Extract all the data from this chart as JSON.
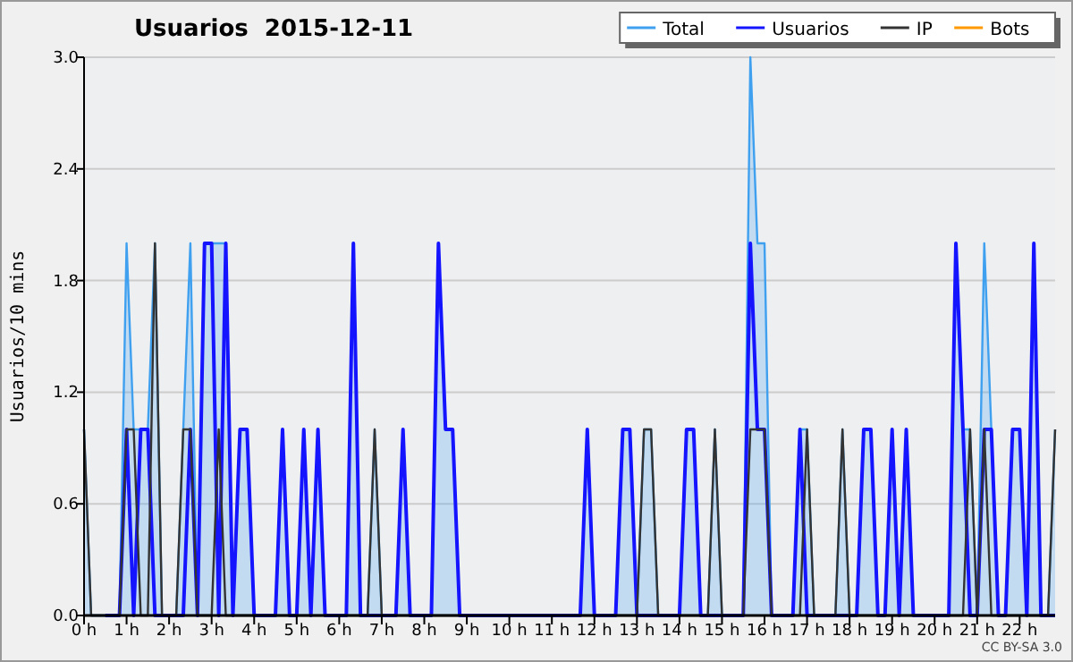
{
  "chart_data": {
    "type": "line",
    "title": "Usuarios  2015-12-11",
    "ylabel": "Usuarios/10 mins",
    "annotations": [
      "CC BY-SA 3.0"
    ],
    "x": [
      0,
      0.167,
      0.333,
      0.5,
      0.667,
      0.833,
      1,
      1.167,
      1.333,
      1.5,
      1.667,
      1.833,
      2,
      2.167,
      2.333,
      2.5,
      2.667,
      2.833,
      3,
      3.167,
      3.333,
      3.5,
      3.667,
      3.833,
      4,
      4.167,
      4.333,
      4.5,
      4.667,
      4.833,
      5,
      5.167,
      5.333,
      5.5,
      5.667,
      5.833,
      6,
      6.167,
      6.333,
      6.5,
      6.667,
      6.833,
      7,
      7.167,
      7.333,
      7.5,
      7.667,
      7.833,
      8,
      8.167,
      8.333,
      8.5,
      8.667,
      8.833,
      9,
      9.167,
      9.333,
      9.5,
      9.667,
      9.833,
      10,
      10.167,
      10.333,
      10.5,
      10.667,
      10.833,
      11,
      11.167,
      11.333,
      11.5,
      11.667,
      11.833,
      12,
      12.167,
      12.333,
      12.5,
      12.667,
      12.833,
      13,
      13.167,
      13.333,
      13.5,
      13.667,
      13.833,
      14,
      14.167,
      14.333,
      14.5,
      14.667,
      14.833,
      15,
      15.167,
      15.333,
      15.5,
      15.667,
      15.833,
      16,
      16.167,
      16.333,
      16.5,
      16.667,
      16.833,
      17,
      17.167,
      17.333,
      17.5,
      17.667,
      17.833,
      18,
      18.167,
      18.333,
      18.5,
      18.667,
      18.833,
      19,
      19.167,
      19.333,
      19.5,
      19.667,
      19.833,
      20,
      20.167,
      20.333,
      20.5,
      20.667,
      20.833,
      21,
      21.167,
      21.333,
      21.5,
      21.667,
      21.833,
      22,
      22.167,
      22.333,
      22.5,
      22.667,
      22.833
    ],
    "xlim": [
      0,
      22.833
    ],
    "xticks": [
      {
        "value": 0,
        "label": "0 h"
      },
      {
        "value": 1,
        "label": "1 h"
      },
      {
        "value": 2,
        "label": "2 h"
      },
      {
        "value": 3,
        "label": "3 h"
      },
      {
        "value": 4,
        "label": "4 h"
      },
      {
        "value": 5,
        "label": "5 h"
      },
      {
        "value": 6,
        "label": "6 h"
      },
      {
        "value": 7,
        "label": "7 h"
      },
      {
        "value": 8,
        "label": "8 h"
      },
      {
        "value": 9,
        "label": "9 h"
      },
      {
        "value": 10,
        "label": "10 h"
      },
      {
        "value": 11,
        "label": "11 h"
      },
      {
        "value": 12,
        "label": "12 h"
      },
      {
        "value": 13,
        "label": "13 h"
      },
      {
        "value": 14,
        "label": "14 h"
      },
      {
        "value": 15,
        "label": "15 h"
      },
      {
        "value": 16,
        "label": "16 h"
      },
      {
        "value": 17,
        "label": "17 h"
      },
      {
        "value": 18,
        "label": "18 h"
      },
      {
        "value": 19,
        "label": "19 h"
      },
      {
        "value": 20,
        "label": "20 h"
      },
      {
        "value": 21,
        "label": "21 h"
      },
      {
        "value": 22,
        "label": "22 h"
      }
    ],
    "ylim": [
      0,
      3
    ],
    "yticks": [
      {
        "value": 0,
        "label": "0.0"
      },
      {
        "value": 0.6,
        "label": "0.6"
      },
      {
        "value": 1.2,
        "label": "1.2"
      },
      {
        "value": 1.8,
        "label": "1.8"
      },
      {
        "value": 2.4,
        "label": "2.4"
      },
      {
        "value": 3,
        "label": "3.0"
      }
    ],
    "grid": "y",
    "legend": "top right",
    "marker": "none",
    "line_style": "solid",
    "series": [
      {
        "name": "Total",
        "type": "area",
        "color": "#3fa0f0",
        "values": [
          1,
          0,
          0,
          0,
          0,
          0,
          2,
          1,
          1,
          1,
          2,
          0,
          0,
          0,
          1,
          2,
          0,
          2,
          2,
          2,
          2,
          0,
          1,
          1,
          0,
          0,
          0,
          0,
          1,
          0,
          0,
          1,
          0,
          1,
          0,
          0,
          0,
          0,
          2,
          0,
          0,
          1,
          0,
          0,
          0,
          1,
          0,
          0,
          0,
          0,
          2,
          1,
          1,
          0,
          0,
          0,
          0,
          0,
          0,
          0,
          0,
          0,
          0,
          0,
          0,
          0,
          0,
          0,
          0,
          0,
          0,
          1,
          0,
          0,
          0,
          0,
          1,
          1,
          0,
          1,
          1,
          0,
          0,
          0,
          0,
          1,
          1,
          0,
          0,
          1,
          0,
          0,
          0,
          0,
          3,
          2,
          2,
          0,
          0,
          0,
          0,
          1,
          1,
          0,
          0,
          0,
          0,
          1,
          0,
          0,
          1,
          1,
          0,
          0,
          1,
          0,
          1,
          0,
          0,
          0,
          0,
          0,
          0,
          2,
          1,
          1,
          0,
          2,
          1,
          0,
          0,
          1,
          1,
          0,
          2,
          0,
          0,
          1
        ]
      },
      {
        "name": "Usuarios",
        "type": "line",
        "color": "#1414ff",
        "values": [
          null,
          null,
          null,
          0,
          0,
          0,
          1,
          0,
          1,
          1,
          0,
          0,
          0,
          0,
          0,
          1,
          0,
          2,
          2,
          0,
          2,
          0,
          1,
          1,
          0,
          0,
          0,
          0,
          1,
          0,
          0,
          1,
          0,
          1,
          0,
          0,
          0,
          0,
          2,
          0,
          0,
          0,
          0,
          0,
          0,
          1,
          0,
          0,
          0,
          0,
          2,
          1,
          1,
          0,
          0,
          0,
          0,
          0,
          0,
          0,
          0,
          0,
          0,
          0,
          0,
          0,
          0,
          0,
          0,
          0,
          0,
          1,
          0,
          0,
          0,
          0,
          1,
          1,
          0,
          0,
          0,
          0,
          0,
          0,
          0,
          1,
          1,
          0,
          0,
          0,
          0,
          0,
          0,
          0,
          2,
          1,
          1,
          0,
          0,
          0,
          0,
          1,
          0,
          0,
          0,
          0,
          0,
          0,
          0,
          0,
          1,
          1,
          0,
          0,
          1,
          0,
          1,
          0,
          0,
          0,
          0,
          0,
          0,
          2,
          1,
          0,
          0,
          1,
          1,
          0,
          0,
          1,
          1,
          0,
          2,
          0,
          0,
          0
        ]
      },
      {
        "name": "IP",
        "type": "line",
        "color": "#333333",
        "values": [
          1,
          0,
          0,
          0,
          0,
          0,
          1,
          1,
          0,
          0,
          2,
          0,
          0,
          0,
          1,
          1,
          0,
          0,
          0,
          1,
          0,
          0,
          0,
          0,
          0,
          0,
          0,
          0,
          0,
          0,
          0,
          0,
          0,
          0,
          0,
          0,
          0,
          0,
          0,
          0,
          0,
          1,
          0,
          0,
          0,
          0,
          0,
          0,
          0,
          0,
          0,
          0,
          0,
          0,
          0,
          0,
          0,
          0,
          0,
          0,
          0,
          0,
          0,
          0,
          0,
          0,
          0,
          0,
          0,
          0,
          0,
          0,
          0,
          0,
          0,
          0,
          0,
          0,
          0,
          1,
          1,
          0,
          0,
          0,
          0,
          0,
          0,
          0,
          0,
          1,
          0,
          0,
          0,
          0,
          1,
          1,
          1,
          0,
          0,
          0,
          0,
          0,
          1,
          0,
          0,
          0,
          0,
          1,
          0,
          0,
          0,
          0,
          0,
          0,
          0,
          0,
          0,
          0,
          0,
          0,
          0,
          0,
          0,
          0,
          0,
          1,
          0,
          1,
          0,
          0,
          0,
          0,
          0,
          0,
          0,
          0,
          0,
          1
        ]
      },
      {
        "name": "Bots",
        "type": "line",
        "color": "#ff9900",
        "values": [
          null,
          null,
          null,
          null,
          null,
          null,
          null,
          null,
          null,
          null,
          null,
          null,
          null,
          null,
          null,
          null,
          null,
          null,
          null,
          null,
          null,
          null,
          null,
          null,
          null,
          null,
          null,
          null,
          null,
          null,
          null,
          null,
          null,
          null,
          null,
          null,
          null,
          null,
          null,
          null,
          null,
          null,
          null,
          null,
          null,
          null,
          null,
          null,
          null,
          null,
          null,
          null,
          null,
          null,
          null,
          null,
          null,
          null,
          null,
          null,
          null,
          null,
          null,
          null,
          null,
          null,
          null,
          null,
          null,
          null,
          null,
          null,
          null,
          null,
          null,
          null,
          null,
          null,
          null,
          null,
          null,
          null,
          null,
          null,
          null,
          null,
          null,
          null,
          null,
          null,
          null,
          null,
          null,
          null,
          null,
          null,
          null,
          null,
          null,
          null,
          null,
          null,
          null,
          null,
          null,
          null,
          null,
          null,
          null,
          null,
          null,
          null,
          null,
          null,
          null,
          null,
          null,
          null,
          null,
          null,
          null,
          null,
          null,
          null,
          null,
          null,
          null,
          null,
          null,
          null,
          null,
          null,
          null,
          null,
          null,
          null,
          null,
          null
        ]
      }
    ]
  }
}
